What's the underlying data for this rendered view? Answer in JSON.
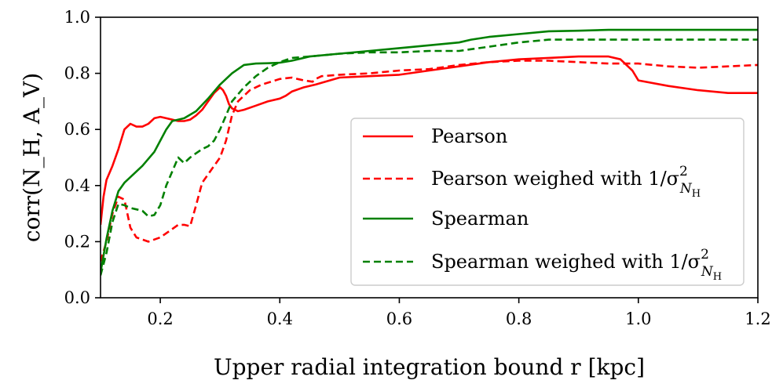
{
  "chart_data": {
    "type": "line",
    "title": "",
    "xlabel": "Upper radial integration bound r [kpc]",
    "ylabel": "corr(N_H, A_V)",
    "xlim": [
      0.1,
      1.2
    ],
    "ylim": [
      0.0,
      1.0
    ],
    "xticks": [
      "0.2",
      "0.4",
      "0.6",
      "0.8",
      "1.0",
      "1.2"
    ],
    "xtick_values": [
      0.2,
      0.4,
      0.6,
      0.8,
      1.0,
      1.2
    ],
    "yticks": [
      "0.0",
      "0.2",
      "0.4",
      "0.6",
      "0.8",
      "1.0"
    ],
    "ytick_values": [
      0.0,
      0.2,
      0.4,
      0.6,
      0.8,
      1.0
    ],
    "grid": false,
    "legend_position": "lower-right",
    "series": [
      {
        "name": "Pearson",
        "legend_label": "Pearson",
        "color": "#ff0000",
        "dash": "solid",
        "x": [
          0.1,
          0.105,
          0.11,
          0.12,
          0.13,
          0.14,
          0.15,
          0.16,
          0.17,
          0.18,
          0.19,
          0.2,
          0.21,
          0.22,
          0.23,
          0.24,
          0.25,
          0.26,
          0.27,
          0.28,
          0.29,
          0.3,
          0.305,
          0.31,
          0.315,
          0.32,
          0.33,
          0.34,
          0.36,
          0.38,
          0.4,
          0.41,
          0.42,
          0.44,
          0.46,
          0.5,
          0.55,
          0.6,
          0.65,
          0.7,
          0.75,
          0.8,
          0.85,
          0.9,
          0.95,
          0.97,
          0.99,
          1.0,
          1.05,
          1.1,
          1.15,
          1.2
        ],
        "y": [
          0.26,
          0.36,
          0.42,
          0.47,
          0.53,
          0.6,
          0.62,
          0.61,
          0.61,
          0.62,
          0.64,
          0.645,
          0.64,
          0.635,
          0.63,
          0.63,
          0.635,
          0.65,
          0.67,
          0.7,
          0.73,
          0.75,
          0.74,
          0.72,
          0.69,
          0.675,
          0.665,
          0.67,
          0.685,
          0.7,
          0.71,
          0.72,
          0.735,
          0.75,
          0.76,
          0.785,
          0.79,
          0.795,
          0.81,
          0.825,
          0.84,
          0.85,
          0.855,
          0.86,
          0.86,
          0.85,
          0.81,
          0.775,
          0.755,
          0.74,
          0.73,
          0.73
        ]
      },
      {
        "name": "Pearson weighed",
        "legend_prefix": "Pearson weighed with 1/σ",
        "legend_superscript": "2",
        "legend_subscript": "N",
        "legend_subsubscript": "H",
        "color": "#ff0000",
        "dash": "dashed",
        "x": [
          0.1,
          0.11,
          0.12,
          0.13,
          0.14,
          0.15,
          0.16,
          0.18,
          0.2,
          0.22,
          0.23,
          0.24,
          0.25,
          0.26,
          0.27,
          0.28,
          0.29,
          0.3,
          0.31,
          0.32,
          0.33,
          0.35,
          0.37,
          0.4,
          0.42,
          0.44,
          0.455,
          0.46,
          0.47,
          0.5,
          0.55,
          0.6,
          0.65,
          0.7,
          0.75,
          0.8,
          0.85,
          0.9,
          0.95,
          1.0,
          1.05,
          1.1,
          1.15,
          1.2
        ],
        "y": [
          0.13,
          0.2,
          0.3,
          0.36,
          0.35,
          0.25,
          0.215,
          0.2,
          0.215,
          0.245,
          0.26,
          0.26,
          0.255,
          0.33,
          0.41,
          0.44,
          0.47,
          0.5,
          0.56,
          0.65,
          0.7,
          0.74,
          0.76,
          0.78,
          0.785,
          0.775,
          0.77,
          0.78,
          0.79,
          0.795,
          0.8,
          0.81,
          0.815,
          0.83,
          0.84,
          0.845,
          0.845,
          0.84,
          0.835,
          0.835,
          0.825,
          0.82,
          0.825,
          0.83
        ]
      },
      {
        "name": "Spearman",
        "legend_label": "Spearman",
        "color": "#008000",
        "dash": "solid",
        "x": [
          0.1,
          0.11,
          0.12,
          0.13,
          0.14,
          0.15,
          0.17,
          0.19,
          0.2,
          0.21,
          0.22,
          0.24,
          0.26,
          0.28,
          0.3,
          0.32,
          0.34,
          0.36,
          0.38,
          0.4,
          0.42,
          0.45,
          0.5,
          0.55,
          0.6,
          0.65,
          0.7,
          0.72,
          0.75,
          0.8,
          0.85,
          0.9,
          0.95,
          1.0,
          1.05,
          1.1,
          1.15,
          1.2
        ],
        "y": [
          0.09,
          0.21,
          0.31,
          0.38,
          0.41,
          0.43,
          0.47,
          0.52,
          0.56,
          0.6,
          0.63,
          0.64,
          0.665,
          0.71,
          0.76,
          0.8,
          0.83,
          0.835,
          0.836,
          0.838,
          0.845,
          0.86,
          0.87,
          0.88,
          0.89,
          0.9,
          0.91,
          0.92,
          0.93,
          0.94,
          0.95,
          0.952,
          0.955,
          0.955,
          0.955,
          0.955,
          0.955,
          0.955
        ]
      },
      {
        "name": "Spearman weighed",
        "legend_prefix": "Spearman weighed with 1/σ",
        "legend_superscript": "2",
        "legend_subscript": "N",
        "legend_subsubscript": "H",
        "color": "#008000",
        "dash": "dashed",
        "x": [
          0.1,
          0.11,
          0.12,
          0.13,
          0.14,
          0.15,
          0.16,
          0.17,
          0.18,
          0.19,
          0.2,
          0.21,
          0.22,
          0.23,
          0.24,
          0.25,
          0.26,
          0.27,
          0.28,
          0.29,
          0.3,
          0.31,
          0.32,
          0.34,
          0.36,
          0.38,
          0.4,
          0.42,
          0.45,
          0.5,
          0.55,
          0.6,
          0.65,
          0.7,
          0.75,
          0.8,
          0.85,
          0.9,
          0.95,
          1.0,
          1.05,
          1.1,
          1.15,
          1.2
        ],
        "y": [
          0.08,
          0.16,
          0.27,
          0.335,
          0.33,
          0.32,
          0.315,
          0.31,
          0.29,
          0.295,
          0.33,
          0.4,
          0.45,
          0.5,
          0.48,
          0.5,
          0.515,
          0.53,
          0.54,
          0.56,
          0.6,
          0.65,
          0.7,
          0.75,
          0.79,
          0.82,
          0.84,
          0.855,
          0.86,
          0.87,
          0.875,
          0.875,
          0.88,
          0.88,
          0.895,
          0.91,
          0.92,
          0.92,
          0.92,
          0.92,
          0.92,
          0.92,
          0.92,
          0.92
        ]
      }
    ]
  }
}
